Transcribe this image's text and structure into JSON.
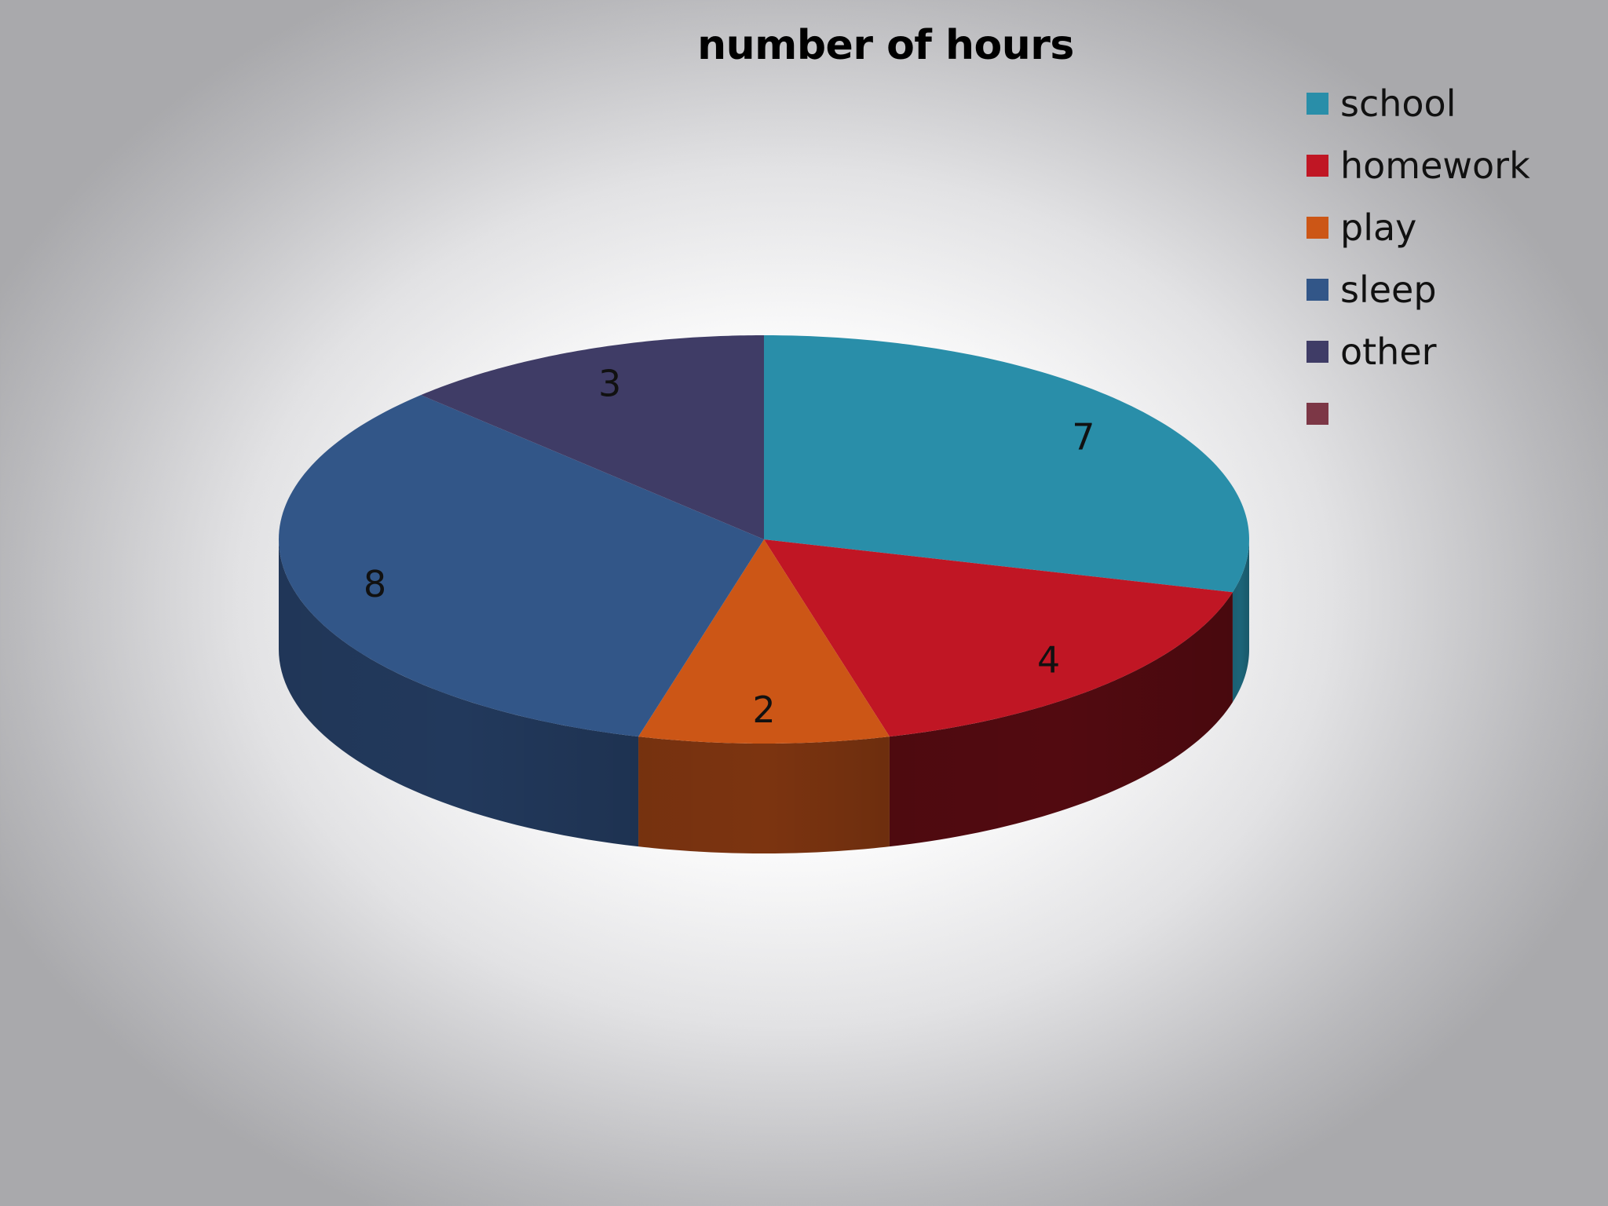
{
  "chart_data": {
    "type": "pie",
    "title": "number of hours",
    "categories": [
      "school",
      "homework",
      "play",
      "sleep",
      "other",
      ""
    ],
    "values": [
      7,
      4,
      2,
      8,
      3,
      null
    ],
    "colors": [
      "#298ea9",
      "#c01624",
      "#cc5616",
      "#325688",
      "#3f3c66",
      "#7c3746"
    ],
    "side_colors": [
      "#1c6478",
      "#520a10",
      "#7c3410",
      "#22395c",
      "#2a2845",
      "#4d2029"
    ],
    "data_labels": [
      "7",
      "4",
      "2",
      "8",
      "3",
      ""
    ],
    "legend_position": "top-right",
    "style": "3d"
  }
}
